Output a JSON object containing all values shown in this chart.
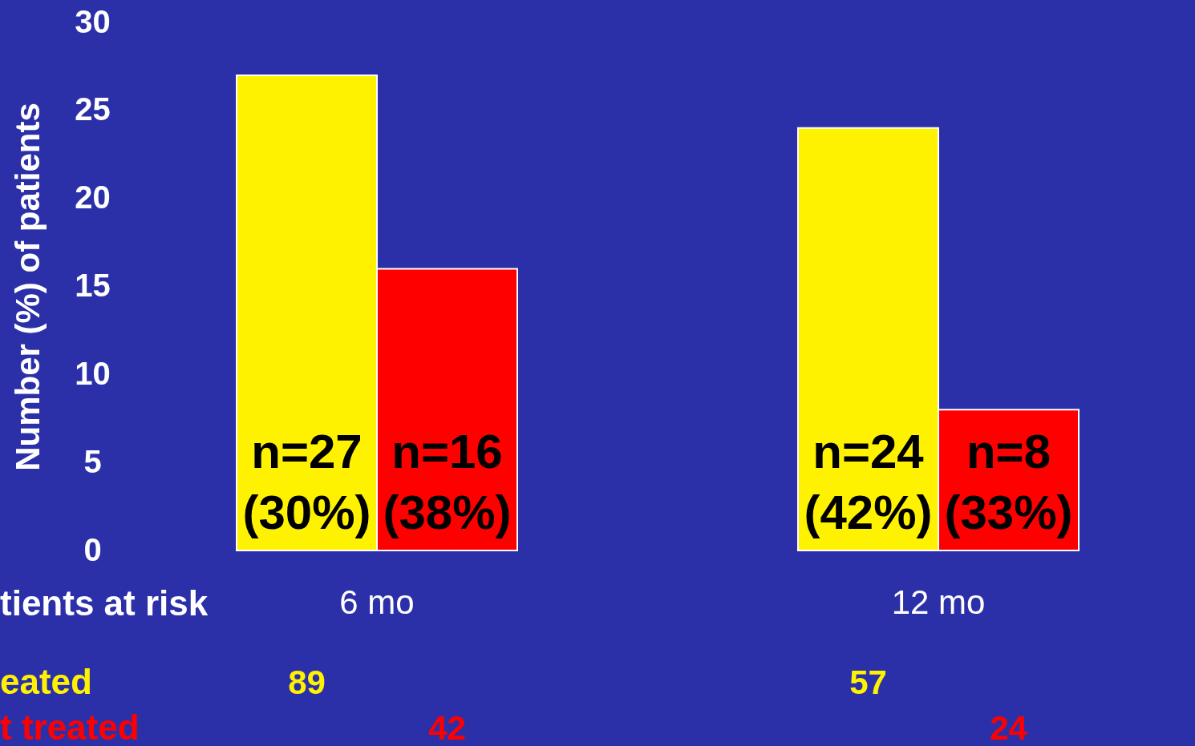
{
  "chart_data": {
    "type": "bar",
    "ylabel": "Number (%) of patients",
    "categories": [
      "6 mo",
      "12 mo"
    ],
    "series": [
      {
        "name": "eated",
        "color": "#fff200",
        "values": [
          27,
          24
        ],
        "value_labels": [
          "n=27\n(30%)",
          "n=24\n(42%)"
        ]
      },
      {
        "name": "t treated",
        "color": "#ff0000",
        "values": [
          16,
          8
        ],
        "value_labels": [
          "n=16\n(38%)",
          "n=8\n(33%)"
        ]
      }
    ],
    "ylim": [
      0,
      30
    ],
    "yticks": [
      0,
      5,
      10,
      15,
      20,
      25,
      30
    ],
    "grid": false,
    "legend": "bottom",
    "annotations": [
      "tients at risk",
      "89",
      "42",
      "57",
      "24"
    ]
  }
}
